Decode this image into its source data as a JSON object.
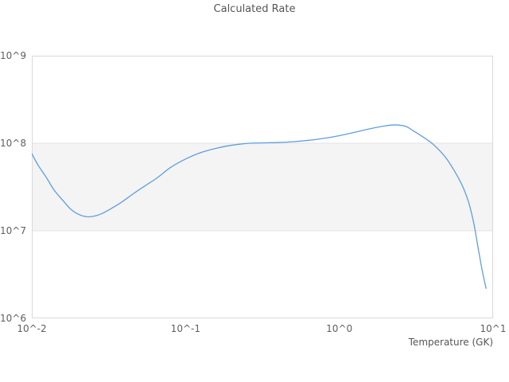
{
  "chart_data": {
    "type": "line",
    "title": "Calculated Rate",
    "xlabel": "Temperature (GK)",
    "ylabel": "",
    "x_scale": "log",
    "y_scale": "log",
    "xlim": [
      0.01,
      10
    ],
    "ylim": [
      1000000,
      1000000000
    ],
    "grid": "horizontal-only",
    "legend": "none",
    "x_ticks": [
      {
        "value": 0.01,
        "label": "10^-2"
      },
      {
        "value": 0.1,
        "label": "10^-1"
      },
      {
        "value": 1,
        "label": "10^0"
      },
      {
        "value": 10,
        "label": "10^1"
      }
    ],
    "y_ticks": [
      {
        "value": 1000000,
        "label": "10^6"
      },
      {
        "value": 10000000,
        "label": "10^7"
      },
      {
        "value": 100000000,
        "label": "10^8"
      },
      {
        "value": 1000000000,
        "label": "10^9"
      }
    ],
    "band": {
      "from": 10000000,
      "to": 100000000
    },
    "series": [
      {
        "name": "Calculated Rate",
        "x": [
          0.01,
          0.011,
          0.0125,
          0.014,
          0.016,
          0.018,
          0.02,
          0.0225,
          0.025,
          0.028,
          0.032,
          0.038,
          0.045,
          0.055,
          0.065,
          0.08,
          0.1,
          0.125,
          0.16,
          0.2,
          0.26,
          0.32,
          0.4,
          0.5,
          0.63,
          0.8,
          1.0,
          1.25,
          1.6,
          2.0,
          2.3,
          2.7,
          3.0,
          3.5,
          4.0,
          4.5,
          5.0,
          5.5,
          6.0,
          6.5,
          7.0,
          7.5,
          8.0,
          8.5,
          9.0
        ],
        "y": [
          76000000.0,
          56000000.0,
          40000000.0,
          29000000.0,
          22000000.0,
          17500000.0,
          15500000.0,
          14500000.0,
          14600000.0,
          15500000.0,
          17500000.0,
          21000000.0,
          26000000.0,
          33000000.0,
          40000000.0,
          53000000.0,
          66000000.0,
          78000000.0,
          88000000.0,
          95000000.0,
          100000000.0,
          101000000.0,
          102000000.0,
          104000000.0,
          108000000.0,
          114000000.0,
          122000000.0,
          133000000.0,
          147000000.0,
          158000000.0,
          162000000.0,
          156000000.0,
          140000000.0,
          118000000.0,
          100000000.0,
          82000000.0,
          66000000.0,
          51000000.0,
          39000000.0,
          29000000.0,
          20000000.0,
          12000000.0,
          6300000.0,
          3500000.0,
          2200000.0
        ]
      }
    ],
    "colors": {
      "line": "#5e9ee0",
      "band": "#f4f4f4",
      "grid": "#e3e3e3",
      "border": "#d9d9d9",
      "title_text": "#555555",
      "tick_text": "#606060",
      "background": "#ffffff"
    }
  }
}
